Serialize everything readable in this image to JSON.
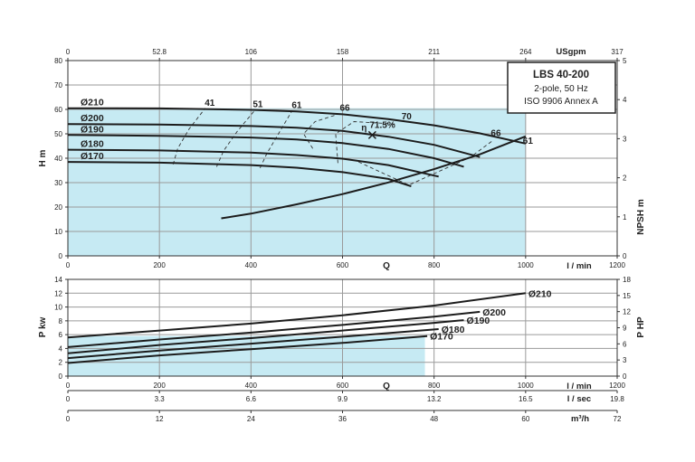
{
  "chart_data": [
    {
      "type": "line",
      "name": "head-chart",
      "info": {
        "title": "LBS 40-200",
        "lines": [
          "2-pole, 50 Hz",
          "ISO 9906 Annex A"
        ]
      },
      "x_axis": {
        "label": "Q",
        "unit": "l / min",
        "range": [
          0,
          1200
        ],
        "ticks": [
          0,
          200,
          400,
          600,
          800,
          1000,
          1200
        ]
      },
      "top_axis": {
        "unit": "USgpm",
        "ticks": [
          "0",
          "52.8",
          "106",
          "158",
          "211",
          "264",
          "317"
        ]
      },
      "y_axis": {
        "label": "H m",
        "range": [
          0,
          80
        ],
        "ticks": [
          0,
          10,
          20,
          30,
          40,
          50,
          60,
          70,
          80
        ]
      },
      "y2_axis": {
        "label": "NPSH m",
        "range": [
          0,
          5
        ],
        "ticks": [
          0,
          1,
          2,
          3,
          4,
          5
        ]
      },
      "shaded_region": {
        "x_max": 1000
      },
      "head_curves": [
        {
          "label": "Ø210",
          "points": [
            [
              0,
              60.5
            ],
            [
              200,
              60.4
            ],
            [
              400,
              59.8
            ],
            [
              500,
              59.2
            ],
            [
              600,
              58.0
            ],
            [
              700,
              56.0
            ],
            [
              800,
              53.5
            ],
            [
              900,
              50.2
            ],
            [
              1000,
              46.0
            ]
          ]
        },
        {
          "label": "Ø200",
          "points": [
            [
              0,
              54.0
            ],
            [
              200,
              53.8
            ],
            [
              400,
              53.2
            ],
            [
              500,
              52.5
            ],
            [
              600,
              51.2
            ],
            [
              700,
              48.8
            ],
            [
              800,
              45.5
            ],
            [
              900,
              40.5
            ]
          ]
        },
        {
          "label": "Ø190",
          "points": [
            [
              0,
              49.5
            ],
            [
              200,
              49.2
            ],
            [
              400,
              48.5
            ],
            [
              500,
              47.7
            ],
            [
              600,
              46.2
            ],
            [
              700,
              43.8
            ],
            [
              800,
              40.0
            ],
            [
              865,
              36.5
            ]
          ]
        },
        {
          "label": "Ø180",
          "points": [
            [
              0,
              43.5
            ],
            [
              200,
              43.2
            ],
            [
              400,
              42.3
            ],
            [
              500,
              41.3
            ],
            [
              600,
              39.8
            ],
            [
              700,
              37.2
            ],
            [
              810,
              32.5
            ]
          ]
        },
        {
          "label": "Ø170",
          "points": [
            [
              0,
              38.5
            ],
            [
              200,
              38.2
            ],
            [
              400,
              37.2
            ],
            [
              500,
              36.1
            ],
            [
              600,
              34.3
            ],
            [
              700,
              31.5
            ],
            [
              750,
              28.5
            ]
          ]
        }
      ],
      "npsh_curve": {
        "points": [
          [
            335,
            0.96
          ],
          [
            400,
            1.08
          ],
          [
            500,
            1.32
          ],
          [
            600,
            1.58
          ],
          [
            700,
            1.88
          ],
          [
            800,
            2.22
          ],
          [
            900,
            2.6
          ],
          [
            1000,
            3.06
          ]
        ]
      },
      "efficiency_labels": [
        {
          "text": "41",
          "x": 310,
          "y": 61.5
        },
        {
          "text": "51",
          "x": 415,
          "y": 61.0
        },
        {
          "text": "61",
          "x": 500,
          "y": 60.5
        },
        {
          "text": "66",
          "x": 605,
          "y": 59.5
        },
        {
          "text": "70",
          "x": 740,
          "y": 56.0
        },
        {
          "text": "66",
          "x": 935,
          "y": 49.0
        },
        {
          "text": "61",
          "x": 1005,
          "y": 46.0
        }
      ],
      "best_efficiency": {
        "text": "71.5%",
        "symbol": "η",
        "x": 665,
        "y": 49.5
      },
      "iso_efficiency_curves": [
        [
          [
            230,
            37.5
          ],
          [
            240,
            44
          ],
          [
            265,
            52
          ],
          [
            300,
            60.5
          ]
        ],
        [
          [
            325,
            36.5
          ],
          [
            340,
            43
          ],
          [
            370,
            51
          ],
          [
            410,
            60
          ]
        ],
        [
          [
            420,
            36
          ],
          [
            435,
            42
          ],
          [
            460,
            50
          ],
          [
            490,
            59.5
          ]
        ],
        [
          [
            535,
            44
          ],
          [
            515,
            50
          ],
          [
            540,
            55
          ],
          [
            590,
            58
          ]
        ],
        [
          [
            635,
            38.5
          ],
          [
            745,
            29
          ],
          [
            880,
            40.5
          ],
          [
            930,
            47.5
          ]
        ],
        [
          [
            590,
            38
          ],
          [
            585,
            50
          ],
          [
            625,
            55
          ],
          [
            715,
            54
          ]
        ]
      ]
    },
    {
      "type": "line",
      "name": "power-chart",
      "x_axis": {
        "label": "Q",
        "unit": "l / min",
        "range": [
          0,
          1200
        ],
        "ticks": [
          0,
          200,
          400,
          600,
          800,
          1000,
          1200
        ]
      },
      "y_axis": {
        "label": "P kw",
        "range": [
          0,
          14
        ],
        "ticks": [
          0,
          2,
          4,
          6,
          8,
          10,
          12,
          14
        ]
      },
      "y2_axis": {
        "label": "P HP",
        "range": [
          0,
          18
        ],
        "ticks": [
          0,
          3,
          6,
          9,
          12,
          15,
          18
        ]
      },
      "shaded_region": {
        "x_max": 780
      },
      "power_curves": [
        {
          "label": "Ø210",
          "points": [
            [
              0,
              5.6
            ],
            [
              200,
              6.6
            ],
            [
              400,
              7.6
            ],
            [
              600,
              8.8
            ],
            [
              800,
              10.2
            ],
            [
              1000,
              12.0
            ]
          ]
        },
        {
          "label": "Ø200",
          "points": [
            [
              0,
              4.2
            ],
            [
              200,
              5.3
            ],
            [
              400,
              6.3
            ],
            [
              600,
              7.4
            ],
            [
              800,
              8.6
            ],
            [
              900,
              9.3
            ]
          ]
        },
        {
          "label": "Ø190",
          "points": [
            [
              0,
              3.3
            ],
            [
              200,
              4.5
            ],
            [
              400,
              5.5
            ],
            [
              600,
              6.6
            ],
            [
              800,
              7.7
            ],
            [
              865,
              8.1
            ]
          ]
        },
        {
          "label": "Ø180",
          "points": [
            [
              0,
              2.6
            ],
            [
              200,
              3.7
            ],
            [
              400,
              4.7
            ],
            [
              600,
              5.7
            ],
            [
              810,
              6.8
            ]
          ]
        },
        {
          "label": "Ø170",
          "points": [
            [
              0,
              1.9
            ],
            [
              200,
              3.0
            ],
            [
              400,
              3.9
            ],
            [
              600,
              4.8
            ],
            [
              785,
              5.8
            ]
          ]
        }
      ],
      "bottom_axes": [
        {
          "unit": "l / sec",
          "ticks": [
            "0",
            "3.3",
            "6.6",
            "9.9",
            "13.2",
            "16.5",
            "19.8"
          ]
        },
        {
          "unit": "m³/h",
          "ticks": [
            "0",
            "12",
            "24",
            "36",
            "48",
            "60",
            "72"
          ]
        }
      ]
    }
  ]
}
